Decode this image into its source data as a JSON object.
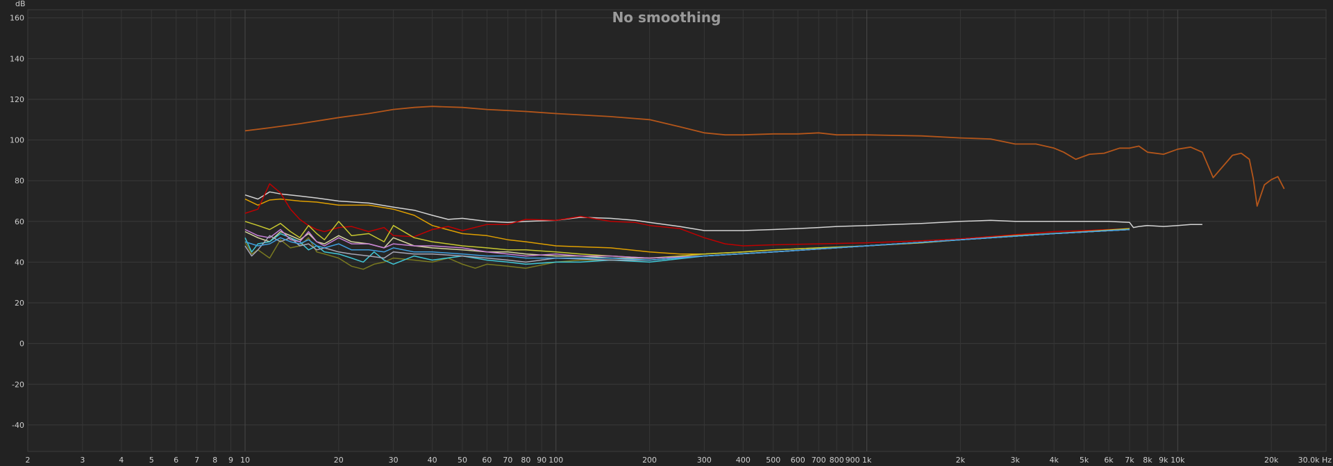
{
  "chart_data": {
    "type": "line",
    "title": "No smoothing",
    "y_unit": "dB",
    "x_unit": "Hz",
    "x_scale": "log",
    "xlim": [
      2,
      30000
    ],
    "ylim": [
      -53,
      164
    ],
    "grid": true,
    "y_ticks": [
      160,
      140,
      120,
      100,
      80,
      60,
      40,
      20,
      0,
      -20,
      -40
    ],
    "y_tick_labels": [
      "160",
      "140",
      "120",
      "100",
      "80",
      "60",
      "40",
      "20",
      "0",
      "-20",
      "-40"
    ],
    "x_ticks": [
      2,
      3,
      4,
      5,
      6,
      7,
      8,
      9,
      10,
      20,
      30,
      40,
      50,
      60,
      70,
      80,
      90,
      100,
      200,
      300,
      400,
      500,
      600,
      700,
      800,
      900,
      1000,
      2000,
      3000,
      4000,
      5000,
      6000,
      7000,
      8000,
      9000,
      10000,
      20000,
      30000
    ],
    "x_tick_labels": [
      "2",
      "3",
      "4",
      "5",
      "6",
      "7",
      "8",
      "9",
      "10",
      "20",
      "30",
      "40",
      "50",
      "60",
      "70",
      "80",
      "90",
      "100",
      "200",
      "300",
      "400",
      "500",
      "600",
      "700",
      "800",
      "900",
      "1k",
      "2k",
      "3k",
      "4k",
      "5k",
      "6k",
      "7k",
      "8k",
      "9k",
      "10k",
      "20k",
      "30.0k Hz"
    ],
    "series": [
      {
        "color": "#b5561a",
        "x": [
          10,
          12,
          15,
          20,
          25,
          30,
          35,
          40,
          50,
          60,
          70,
          80,
          100,
          150,
          200,
          250,
          300,
          350,
          400,
          500,
          600,
          700,
          800,
          1000,
          1500,
          2000,
          2500,
          3000,
          3500,
          4000,
          4300,
          4700,
          5200,
          5800,
          6500,
          7000,
          7500,
          8000,
          9000,
          10000,
          11000,
          12000,
          13000,
          15000,
          16000,
          17000,
          17500,
          18000,
          19000,
          20000,
          21000,
          22000
        ],
        "y": [
          104.5,
          106,
          108,
          111,
          113,
          115,
          116,
          116.5,
          116,
          115,
          114.5,
          114,
          113,
          111.5,
          110,
          106.5,
          103.5,
          102.5,
          102.5,
          103,
          103,
          103.5,
          102.5,
          102.5,
          102,
          101,
          100.5,
          98,
          98,
          96,
          94,
          90.5,
          93,
          93.5,
          96,
          96,
          97,
          94,
          93,
          95.5,
          96.5,
          94,
          81.5,
          92.5,
          93.5,
          90.5,
          81,
          67.5,
          78,
          80.5,
          82,
          76
        ]
      },
      {
        "color": "#d4d4d4",
        "x": [
          10,
          11,
          12,
          13,
          15,
          17,
          20,
          25,
          30,
          35,
          40,
          45,
          50,
          60,
          70,
          80,
          100,
          120,
          150,
          180,
          200,
          250,
          300,
          400,
          500,
          600,
          700,
          800,
          1000,
          1500,
          2000,
          2500,
          3000,
          4000,
          5000,
          6000,
          7000,
          7200,
          7500,
          8000,
          9000,
          10000,
          11000,
          12000
        ],
        "y": [
          73,
          71,
          74.5,
          73.5,
          72.5,
          71.5,
          70,
          69,
          67,
          65.5,
          63,
          61,
          61.5,
          60,
          59.5,
          60,
          60.5,
          62,
          61.5,
          60.5,
          59.5,
          57.5,
          55.5,
          55.5,
          56,
          56.5,
          57,
          57.5,
          58,
          59,
          60,
          60.5,
          60,
          60,
          60,
          60,
          59.5,
          57,
          57.5,
          58,
          57.5,
          58,
          58.5,
          58.5
        ]
      },
      {
        "color": "#e0a000",
        "x": [
          10,
          11,
          12,
          13,
          15,
          17,
          20,
          25,
          30,
          35,
          40,
          50,
          60,
          70,
          80,
          100,
          120,
          150,
          200,
          250,
          300,
          400,
          500,
          700,
          1000,
          1500,
          2000,
          3000,
          4000,
          5000,
          6000,
          7000
        ],
        "y": [
          71,
          68,
          70.5,
          71,
          70,
          69.5,
          68,
          68,
          66,
          63,
          58,
          54,
          53,
          51,
          50,
          48,
          47.5,
          47,
          45,
          44,
          44,
          45,
          46,
          47,
          48,
          49.5,
          51,
          53,
          54,
          55,
          55.5,
          56.5
        ]
      },
      {
        "color": "#c00000",
        "x": [
          10,
          11,
          12,
          13,
          14,
          15,
          16,
          17,
          18,
          20,
          22,
          25,
          28,
          30,
          35,
          40,
          45,
          50,
          60,
          70,
          80,
          100,
          120,
          150,
          180,
          200,
          250,
          300,
          350,
          400,
          500,
          700,
          1000,
          1500,
          2000,
          3000,
          4000,
          5000,
          6000,
          7000
        ],
        "y": [
          64,
          66,
          78.5,
          74,
          66,
          61,
          58,
          56,
          55,
          57,
          57.5,
          55,
          57,
          53,
          52.5,
          56,
          57.5,
          55.5,
          58.5,
          58.5,
          61,
          60.5,
          62.5,
          60,
          59.5,
          58,
          56.5,
          52,
          49,
          48,
          48.5,
          49,
          49.5,
          50.5,
          51.5,
          53.5,
          55,
          55.5,
          56,
          56.5
        ]
      },
      {
        "color": "#c8c830",
        "x": [
          10,
          11,
          12,
          13,
          14,
          15,
          16,
          17,
          18,
          20,
          22,
          25,
          28,
          30,
          35,
          40,
          50,
          60,
          70,
          80,
          100,
          120,
          150,
          200,
          250,
          300,
          400,
          500,
          700,
          1000,
          1500,
          2000,
          3000,
          5000,
          7000
        ],
        "y": [
          60,
          58,
          56,
          59,
          55,
          52,
          58,
          54,
          51,
          60,
          53,
          54,
          50,
          58,
          52,
          50,
          48,
          47,
          46,
          46,
          45,
          44,
          43,
          42,
          43,
          44,
          45,
          46,
          47,
          48,
          49.5,
          51,
          53,
          55,
          56.5
        ]
      },
      {
        "color": "#d8d8a0",
        "x": [
          10,
          11,
          12,
          13,
          14,
          15,
          16,
          17,
          18,
          20,
          22,
          25,
          28,
          30,
          35,
          40,
          50,
          60,
          70,
          80,
          100,
          120,
          150,
          200,
          300,
          500,
          1000,
          2000,
          4000,
          7000
        ],
        "y": [
          55,
          52,
          50,
          55,
          53,
          51,
          54,
          50,
          49,
          53,
          50,
          49,
          47,
          52,
          48,
          47,
          46,
          45,
          45,
          44,
          43,
          43,
          42,
          42,
          43,
          45,
          48,
          51,
          54,
          56
        ]
      },
      {
        "color": "#7a7a20",
        "x": [
          10,
          10.5,
          11,
          12,
          13,
          14,
          15,
          16,
          17,
          18,
          20,
          22,
          24,
          26,
          28,
          30,
          35,
          40,
          45,
          50,
          55,
          60,
          70,
          80,
          100,
          120,
          150,
          200,
          300,
          500,
          1000,
          2000,
          4000,
          7000
        ],
        "y": [
          50,
          44,
          46,
          42,
          51,
          47,
          48,
          52,
          45,
          44,
          42,
          38,
          36.5,
          39,
          40,
          42,
          41,
          40,
          42,
          39,
          37,
          39,
          38,
          37,
          40,
          41,
          41,
          41,
          43,
          45,
          48,
          51,
          54,
          56
        ]
      },
      {
        "color": "#40c8d8",
        "x": [
          10,
          10.5,
          11,
          12,
          13,
          14,
          15,
          16,
          17,
          18,
          20,
          22,
          24,
          26,
          28,
          30,
          35,
          40,
          50,
          60,
          70,
          80,
          100,
          120,
          150,
          200,
          300,
          500,
          1000,
          2000,
          4000,
          7000
        ],
        "y": [
          52,
          45,
          49,
          50,
          54,
          52,
          50,
          46,
          48,
          45,
          44,
          42,
          40,
          45,
          41,
          39,
          43,
          41,
          43,
          41,
          40,
          39,
          40,
          40,
          41,
          40,
          43,
          45,
          48,
          51,
          54,
          56
        ]
      },
      {
        "color": "#c880d8",
        "x": [
          10,
          11,
          12,
          13,
          14,
          15,
          16,
          17,
          18,
          20,
          22,
          25,
          28,
          30,
          35,
          40,
          50,
          60,
          70,
          80,
          100,
          120,
          150,
          200,
          300,
          500,
          1000,
          2000,
          4000,
          7000
        ],
        "y": [
          56,
          53,
          52,
          56,
          51,
          50,
          55,
          50,
          48,
          52,
          49,
          49,
          47,
          49,
          48,
          48,
          47,
          45,
          44,
          43,
          44,
          43,
          43,
          42,
          43,
          45,
          48,
          51,
          54,
          56
        ]
      },
      {
        "color": "#a8a8b8",
        "x": [
          10,
          10.5,
          11,
          12,
          13,
          14,
          15,
          16,
          17,
          18,
          20,
          22,
          25,
          28,
          30,
          35,
          40,
          50,
          60,
          70,
          80,
          100,
          150,
          200,
          300,
          500,
          1000,
          2000,
          4000,
          7000
        ],
        "y": [
          48,
          43,
          46,
          53,
          50,
          52,
          48,
          49,
          46,
          47,
          45,
          44,
          43,
          42,
          45,
          44,
          44,
          43,
          42,
          41,
          40,
          42,
          41,
          41,
          43,
          45,
          48,
          51,
          54,
          56
        ]
      },
      {
        "color": "#40a0e0",
        "x": [
          10,
          11,
          12,
          13,
          14,
          15,
          16,
          17,
          18,
          20,
          22,
          25,
          28,
          30,
          35,
          40,
          50,
          60,
          70,
          80,
          100,
          150,
          200,
          300,
          500,
          1000,
          2000,
          4000,
          7000
        ],
        "y": [
          50,
          48,
          49,
          52,
          50,
          49,
          51,
          48,
          47,
          49,
          46,
          46,
          45,
          47,
          45,
          45,
          44,
          43,
          43,
          42,
          42,
          42,
          41,
          43,
          45,
          48,
          51,
          54,
          56
        ]
      }
    ]
  }
}
